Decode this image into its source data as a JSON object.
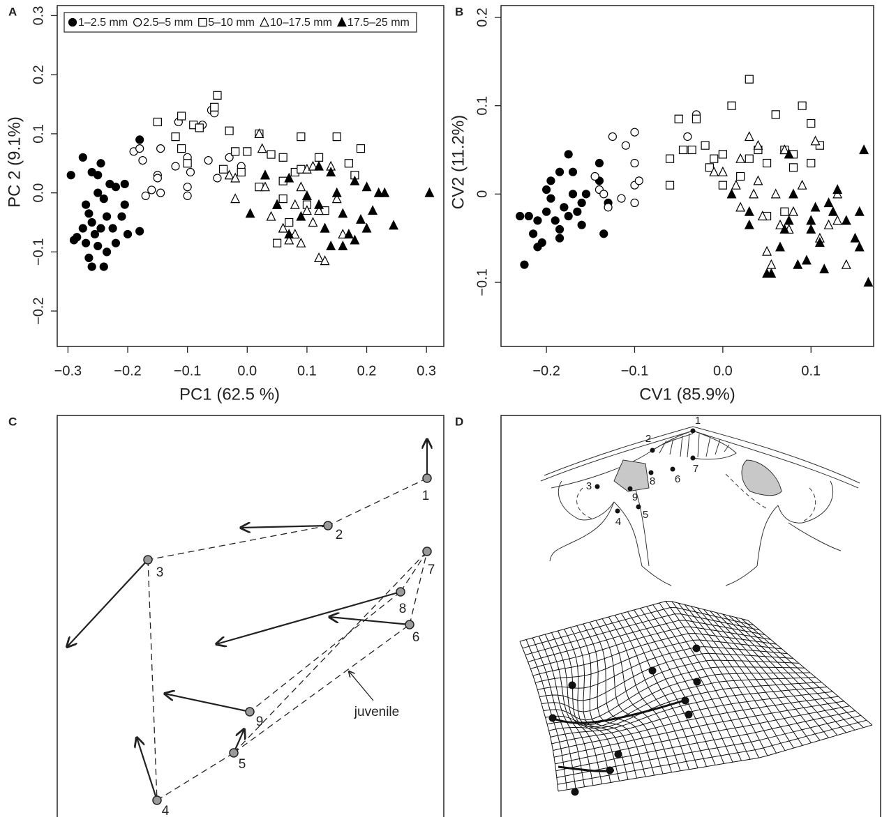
{
  "chart_data": [
    {
      "type": "scatter",
      "panel_label": "A",
      "x_label": "PC1 (62.5 %)",
      "y_label": "PC 2 (9.1%)",
      "xlim": [
        -0.318,
        0.329
      ],
      "ylim": [
        -0.26,
        0.317
      ],
      "xticks": [
        {
          "value": -0.3,
          "label": "−0.3"
        },
        {
          "value": -0.2,
          "label": "−0.2"
        },
        {
          "value": -0.1,
          "label": "−0.1"
        },
        {
          "value": 0,
          "label": "0.0"
        },
        0.1,
        0.2,
        0.3
      ],
      "yticks": [
        {
          "value": -0.2,
          "label": "−0.2"
        },
        {
          "value": -0.1,
          "label": "−0.1"
        },
        {
          "value": 0,
          "label": "0.0"
        },
        0.1,
        0.2,
        0.3
      ],
      "legend": "top-left",
      "series": [
        {
          "name": "1–2.5 mm",
          "marker": "filled-circle",
          "color": "#000000",
          "x": [
            -0.295,
            -0.275,
            -0.26,
            -0.245,
            -0.25,
            -0.23,
            -0.22,
            -0.205,
            -0.18,
            -0.29,
            -0.285,
            -0.27,
            -0.265,
            -0.26,
            -0.255,
            -0.25,
            -0.265,
            -0.26,
            -0.24,
            -0.245,
            -0.235,
            -0.225,
            -0.21,
            -0.22,
            -0.2,
            -0.18,
            -0.205,
            -0.25,
            -0.24,
            -0.27,
            -0.275,
            -0.235
          ],
          "values": [
            0.03,
            0.06,
            0.035,
            0.05,
            0.03,
            0.015,
            0.01,
            0.015,
            0.09,
            -0.08,
            -0.075,
            -0.02,
            -0.035,
            -0.05,
            -0.07,
            -0.09,
            -0.11,
            -0.125,
            -0.125,
            -0.06,
            -0.04,
            -0.06,
            -0.04,
            -0.085,
            -0.07,
            -0.065,
            -0.02,
            0.0,
            -0.01,
            -0.085,
            -0.06,
            -0.1
          ]
        },
        {
          "name": "2.5–5 mm",
          "marker": "open-circle",
          "color": "#000000",
          "x": [
            -0.19,
            -0.18,
            -0.175,
            -0.17,
            -0.16,
            -0.15,
            -0.145,
            -0.145,
            -0.15,
            -0.12,
            -0.115,
            -0.1,
            -0.1,
            -0.1,
            -0.095,
            -0.075,
            -0.06,
            -0.065,
            -0.05,
            -0.03,
            -0.01,
            -0.055
          ],
          "values": [
            0.07,
            0.075,
            0.055,
            -0.005,
            0.005,
            0.03,
            0.075,
            0.0,
            0.025,
            0.045,
            0.12,
            0.06,
            0.01,
            -0.005,
            0.035,
            0.115,
            0.14,
            0.055,
            0.025,
            0.06,
            0.045,
            0.135
          ]
        },
        {
          "name": "5–10 mm",
          "marker": "open-square",
          "color": "#000000",
          "x": [
            -0.15,
            -0.12,
            -0.11,
            -0.11,
            -0.1,
            -0.09,
            -0.08,
            -0.055,
            -0.05,
            -0.03,
            -0.02,
            -0.01,
            0.0,
            0.02,
            0.04,
            0.06,
            0.09,
            0.08,
            0.12,
            0.15,
            0.17,
            0.19,
            0.02,
            0.06,
            0.05,
            0.07,
            0.1,
            0.06,
            0.13,
            0.18,
            0.09,
            -0.04
          ],
          "values": [
            0.12,
            0.095,
            0.13,
            0.075,
            0.05,
            0.115,
            0.11,
            0.145,
            0.165,
            0.105,
            0.07,
            0.035,
            0.07,
            0.1,
            0.065,
            0.06,
            0.095,
            0.035,
            0.06,
            0.095,
            0.05,
            0.075,
            0.01,
            -0.01,
            -0.085,
            -0.05,
            -0.02,
            0.02,
            -0.03,
            0.03,
            0.04,
            0.04
          ]
        },
        {
          "name": "10–17.5 mm",
          "marker": "open-triangle",
          "color": "#000000",
          "x": [
            -0.03,
            -0.02,
            -0.02,
            0.02,
            0.025,
            0.03,
            0.03,
            0.05,
            0.04,
            0.06,
            0.07,
            0.08,
            0.09,
            0.1,
            0.11,
            0.12,
            0.13,
            0.12,
            0.13,
            0.14,
            0.15,
            0.16,
            0.11,
            0.08,
            0.09,
            0.1
          ],
          "values": [
            0.03,
            0.025,
            -0.01,
            0.1,
            0.075,
            0.03,
            0.01,
            -0.02,
            -0.04,
            -0.06,
            -0.08,
            -0.02,
            0.01,
            0.04,
            0.045,
            -0.03,
            -0.06,
            -0.11,
            -0.115,
            0.045,
            -0.01,
            -0.07,
            -0.05,
            -0.07,
            -0.085,
            -0.03
          ]
        },
        {
          "name": "17.5–25 mm",
          "marker": "filled-triangle",
          "color": "#000000",
          "x": [
            0.005,
            0.03,
            0.05,
            0.07,
            0.09,
            0.1,
            0.12,
            0.13,
            0.14,
            0.15,
            0.16,
            0.17,
            0.18,
            0.19,
            0.2,
            0.21,
            0.22,
            0.23,
            0.245,
            0.305,
            0.16,
            0.12,
            0.18,
            0.07,
            0.14,
            0.2
          ],
          "values": [
            -0.035,
            0.03,
            -0.02,
            0.025,
            -0.04,
            -0.005,
            0.045,
            -0.06,
            -0.09,
            0.0,
            -0.035,
            -0.07,
            0.02,
            -0.045,
            0.01,
            -0.03,
            0.0,
            0.0,
            -0.055,
            0.0,
            -0.09,
            -0.02,
            -0.08,
            -0.07,
            0.035,
            -0.06
          ]
        }
      ]
    },
    {
      "type": "scatter",
      "panel_label": "B",
      "x_label": "CV1 (85.9%)",
      "y_label": "CV2 (11.2%)",
      "xlim": [
        -0.2515,
        0.171
      ],
      "ylim": [
        -0.1726,
        0.2134
      ],
      "xticks": [
        {
          "value": -0.2,
          "label": "−0.2"
        },
        {
          "value": -0.1,
          "label": "−0.1"
        },
        {
          "value": 0,
          "label": "0.0"
        },
        0.1
      ],
      "yticks": [
        {
          "value": -0.1,
          "label": "−0.1"
        },
        0,
        0.1,
        0.2
      ],
      "series": [
        {
          "marker": "filled-circle",
          "color": "#000000",
          "x": [
            -0.225,
            -0.23,
            -0.22,
            -0.21,
            -0.205,
            -0.2,
            -0.195,
            -0.19,
            -0.185,
            -0.18,
            -0.175,
            -0.175,
            -0.17,
            -0.165,
            -0.16,
            -0.155,
            -0.14,
            -0.14,
            -0.135,
            -0.13,
            -0.185,
            -0.2,
            -0.21,
            -0.195,
            -0.185,
            -0.215,
            -0.16,
            -0.17
          ],
          "values": [
            -0.08,
            -0.025,
            -0.025,
            -0.06,
            -0.055,
            -0.02,
            -0.005,
            -0.03,
            -0.04,
            -0.015,
            0.045,
            -0.025,
            0.0,
            -0.02,
            -0.01,
            0.0,
            0.035,
            0.015,
            -0.045,
            -0.01,
            -0.05,
            0.005,
            -0.03,
            0.015,
            0.025,
            -0.045,
            -0.035,
            0.025
          ]
        },
        {
          "marker": "open-circle",
          "color": "#000000",
          "x": [
            -0.145,
            -0.14,
            -0.13,
            -0.125,
            -0.115,
            -0.11,
            -0.1,
            -0.1,
            -0.1,
            -0.095,
            -0.1,
            -0.135,
            -0.03,
            -0.04
          ],
          "values": [
            0.02,
            0.005,
            -0.015,
            0.065,
            -0.005,
            0.055,
            0.07,
            0.035,
            0.01,
            0.015,
            -0.01,
            0.0,
            0.09,
            0.065
          ]
        },
        {
          "marker": "open-square",
          "color": "#000000",
          "x": [
            -0.06,
            -0.05,
            -0.045,
            -0.035,
            -0.03,
            -0.02,
            -0.015,
            -0.01,
            0.0,
            0.01,
            0.02,
            0.03,
            0.04,
            0.05,
            0.06,
            0.07,
            0.08,
            0.09,
            0.1,
            0.11,
            0.05,
            0.07,
            0.0,
            -0.06,
            0.03,
            0.08,
            0.1
          ],
          "values": [
            0.04,
            0.085,
            0.05,
            0.05,
            0.085,
            0.055,
            0.03,
            0.04,
            0.045,
            0.1,
            0.02,
            0.13,
            0.05,
            0.035,
            0.09,
            0.05,
            0.045,
            0.1,
            0.08,
            0.055,
            -0.025,
            -0.02,
            0.01,
            0.01,
            0.04,
            0.03,
            0.035
          ]
        },
        {
          "marker": "open-triangle",
          "color": "#000000",
          "x": [
            -0.01,
            0.0,
            0.015,
            0.02,
            0.02,
            0.03,
            0.04,
            0.04,
            0.045,
            0.05,
            0.055,
            0.06,
            0.07,
            0.075,
            0.08,
            0.09,
            0.1,
            0.11,
            0.12,
            0.13,
            0.14,
            0.035,
            0.065,
            0.105,
            0.13
          ],
          "values": [
            0.025,
            0.025,
            0.01,
            0.04,
            -0.015,
            0.065,
            0.055,
            0.015,
            -0.025,
            -0.065,
            -0.08,
            0.0,
            0.05,
            -0.04,
            -0.02,
            0.01,
            -0.03,
            -0.05,
            -0.035,
            -0.03,
            -0.08,
            0.0,
            -0.035,
            0.06,
            0.0
          ]
        },
        {
          "marker": "filled-triangle",
          "color": "#000000",
          "x": [
            0.01,
            0.03,
            0.03,
            0.05,
            0.055,
            0.065,
            0.07,
            0.075,
            0.08,
            0.085,
            0.095,
            0.1,
            0.105,
            0.11,
            0.115,
            0.12,
            0.125,
            0.13,
            0.14,
            0.15,
            0.155,
            0.16,
            0.165,
            0.155,
            0.1,
            0.075
          ],
          "values": [
            0.0,
            -0.02,
            -0.035,
            -0.09,
            -0.09,
            -0.06,
            -0.04,
            0.045,
            0.0,
            -0.08,
            -0.075,
            -0.04,
            -0.015,
            -0.055,
            -0.085,
            -0.01,
            -0.02,
            0.005,
            -0.03,
            -0.05,
            -0.02,
            0.05,
            -0.1,
            -0.06,
            -0.03,
            -0.03
          ]
        }
      ]
    }
  ],
  "panel_c": {
    "label": "C",
    "landmarks": [
      "1",
      "2",
      "3",
      "4",
      "5",
      "6",
      "7",
      "8",
      "9"
    ],
    "annotation": "juvenile"
  },
  "panel_d": {
    "label": "D",
    "landmarks": [
      "1",
      "2",
      "3",
      "4",
      "5",
      "6",
      "7",
      "8",
      "9"
    ]
  }
}
